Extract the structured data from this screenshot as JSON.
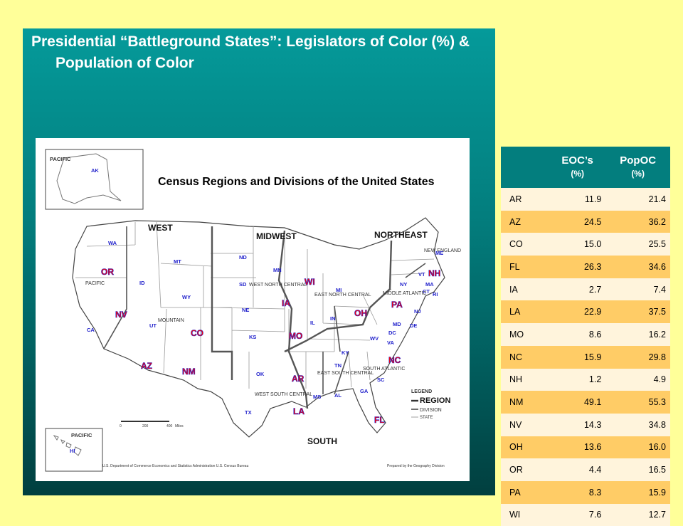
{
  "title": "Presidential “Battleground States”: Legislators of Color (%) & Population of Color",
  "map": {
    "heading": "Census Regions and Divisions of the United States",
    "regions": {
      "west": "WEST",
      "midwest": "MIDWEST",
      "northeast": "NORTHEAST",
      "south": "SOUTH"
    },
    "divisions": {
      "pacific": "PACIFIC",
      "mountain": "MOUNTAIN",
      "west_north_central": "WEST NORTH CENTRAL",
      "east_north_central": "EAST NORTH CENTRAL",
      "middle_atlantic": "MIDDLE ATLANTIC",
      "new_england": "NEW ENGLAND",
      "south_atlantic": "SOUTH ATLANTIC",
      "east_south_central": "EAST SOUTH CENTRAL",
      "west_south_central": "WEST SOUTH CENTRAL"
    },
    "inset_labels": {
      "pacific_ak": "PACIFIC",
      "pacific_hi": "PACIFIC"
    },
    "scale": {
      "label0": "0",
      "label1": "200",
      "label2": "400",
      "unit": "Miles"
    },
    "legend": {
      "title": "LEGEND",
      "region": "REGION",
      "division": "DIVISION",
      "state": "STATE"
    },
    "footer_left": "U.S. Department of Commerce Economics and Statistics Administration U.S. Census Bureau",
    "footer_right": "Prepared by the Geography Division",
    "colors": {
      "battleground": "#ff0000",
      "other_state": "#2222cc",
      "battleground_outline": "#2222cc"
    },
    "states": [
      {
        "code": "AK",
        "battleground": false
      },
      {
        "code": "HI",
        "battleground": false
      },
      {
        "code": "WA",
        "battleground": false
      },
      {
        "code": "OR",
        "battleground": true
      },
      {
        "code": "CA",
        "battleground": false
      },
      {
        "code": "ID",
        "battleground": false
      },
      {
        "code": "NV",
        "battleground": true
      },
      {
        "code": "MT",
        "battleground": false
      },
      {
        "code": "WY",
        "battleground": false
      },
      {
        "code": "UT",
        "battleground": false
      },
      {
        "code": "CO",
        "battleground": true
      },
      {
        "code": "AZ",
        "battleground": true
      },
      {
        "code": "NM",
        "battleground": true
      },
      {
        "code": "ND",
        "battleground": false
      },
      {
        "code": "SD",
        "battleground": false
      },
      {
        "code": "NE",
        "battleground": false
      },
      {
        "code": "KS",
        "battleground": false
      },
      {
        "code": "MN",
        "battleground": false
      },
      {
        "code": "IA",
        "battleground": true
      },
      {
        "code": "MO",
        "battleground": true
      },
      {
        "code": "WI",
        "battleground": true
      },
      {
        "code": "IL",
        "battleground": false
      },
      {
        "code": "MI",
        "battleground": false
      },
      {
        "code": "IN",
        "battleground": false
      },
      {
        "code": "OH",
        "battleground": true
      },
      {
        "code": "KY",
        "battleground": false
      },
      {
        "code": "TN",
        "battleground": false
      },
      {
        "code": "MS",
        "battleground": false
      },
      {
        "code": "AL",
        "battleground": false
      },
      {
        "code": "OK",
        "battleground": false
      },
      {
        "code": "TX",
        "battleground": false
      },
      {
        "code": "AR",
        "battleground": true
      },
      {
        "code": "LA",
        "battleground": true
      },
      {
        "code": "GA",
        "battleground": false
      },
      {
        "code": "FL",
        "battleground": true
      },
      {
        "code": "SC",
        "battleground": false
      },
      {
        "code": "NC",
        "battleground": true
      },
      {
        "code": "VA",
        "battleground": false
      },
      {
        "code": "WV",
        "battleground": false
      },
      {
        "code": "MD",
        "battleground": false
      },
      {
        "code": "DC",
        "battleground": false
      },
      {
        "code": "DE",
        "battleground": false
      },
      {
        "code": "PA",
        "battleground": true
      },
      {
        "code": "NJ",
        "battleground": false
      },
      {
        "code": "NY",
        "battleground": false
      },
      {
        "code": "CT",
        "battleground": false
      },
      {
        "code": "RI",
        "battleground": false
      },
      {
        "code": "MA",
        "battleground": false
      },
      {
        "code": "VT",
        "battleground": false
      },
      {
        "code": "NH",
        "battleground": true
      },
      {
        "code": "ME",
        "battleground": false
      }
    ]
  },
  "table": {
    "headers": [
      {
        "label": "",
        "sub": ""
      },
      {
        "label": "EOC’s",
        "sub": "(%)"
      },
      {
        "label": "PopOC",
        "sub": "(%)"
      }
    ],
    "rows": [
      [
        "AR",
        "11.9",
        "21.4"
      ],
      [
        "AZ",
        "24.5",
        "36.2"
      ],
      [
        "CO",
        "15.0",
        "25.5"
      ],
      [
        "FL",
        "26.3",
        "34.6"
      ],
      [
        "IA",
        "2.7",
        "7.4"
      ],
      [
        "LA",
        "22.9",
        "37.5"
      ],
      [
        "MO",
        "8.6",
        "16.2"
      ],
      [
        "NC",
        "15.9",
        "29.8"
      ],
      [
        "NH",
        "1.2",
        "4.9"
      ],
      [
        "NM",
        "49.1",
        "55.3"
      ],
      [
        "NV",
        "14.3",
        "34.8"
      ],
      [
        "OH",
        "13.6",
        "16.0"
      ],
      [
        "OR",
        "4.4",
        "16.5"
      ],
      [
        "PA",
        "8.3",
        "15.9"
      ],
      [
        "WI",
        "7.6",
        "12.7"
      ]
    ]
  }
}
